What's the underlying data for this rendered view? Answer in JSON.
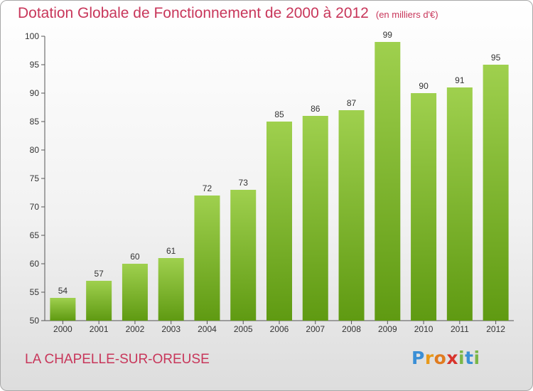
{
  "title": "Dotation Globale de Fonctionnement de 2000 à 2012",
  "unit": "(en milliers d'€)",
  "commune": "LA CHAPELLE-SUR-OREUSE",
  "logo": {
    "letters": [
      "P",
      "r",
      "o",
      "x",
      "i",
      "t",
      "i"
    ]
  },
  "colors": {
    "title": "#c8365a",
    "bar_top": "#9fd04e",
    "bar_bottom": "#5f9a12",
    "axis": "#555555",
    "label": "#333333",
    "logo": [
      "#3a8fd6",
      "#e89a1a",
      "#e07c20",
      "#d8342c",
      "#7ab648",
      "#3a8fd6",
      "#7ab648"
    ]
  },
  "chart_data": {
    "type": "bar",
    "categories": [
      "2000",
      "2001",
      "2002",
      "2003",
      "2004",
      "2005",
      "2006",
      "2007",
      "2008",
      "2009",
      "2010",
      "2011",
      "2012"
    ],
    "values": [
      54,
      57,
      60,
      61,
      72,
      73,
      85,
      86,
      87,
      99,
      90,
      91,
      95
    ],
    "ylim": [
      50,
      100
    ],
    "yticks": [
      "50",
      "55",
      "60",
      "65",
      "70",
      "75",
      "80",
      "85",
      "90",
      "95",
      "100"
    ],
    "xlabel": "",
    "ylabel": "",
    "grid": false,
    "data_labels": true
  }
}
